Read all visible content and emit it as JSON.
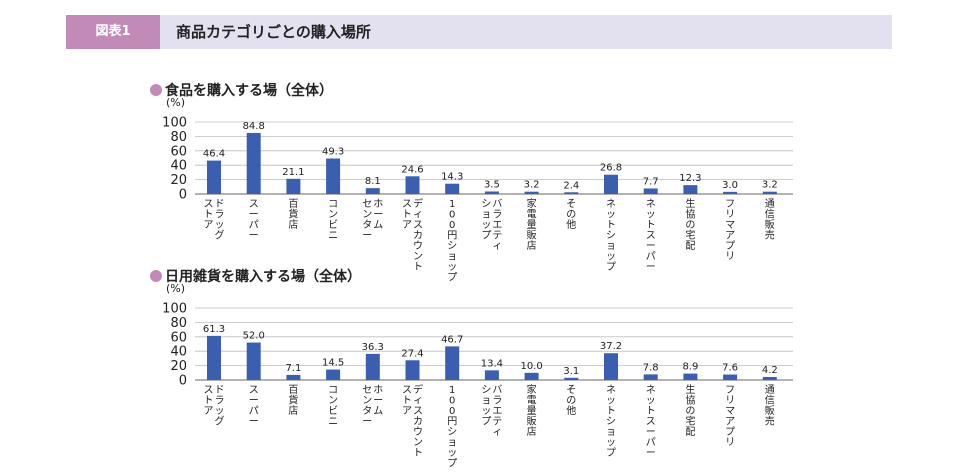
{
  "header": {
    "figure_label": "図表1",
    "title": "商品カテゴリごとの購入場所"
  },
  "colors": {
    "bar": "#3a5fb0",
    "accent": "#c28ab6",
    "header_bg": "#e3e0ef"
  },
  "chart_data": [
    {
      "type": "bar",
      "title": "食品を購入する場（全体）",
      "ylabel": "(%)",
      "ylim": [
        0,
        100
      ],
      "yticks": [
        0,
        20,
        40,
        60,
        80,
        100
      ],
      "grid": true,
      "categories": [
        "ドラッグストア",
        "スーパー",
        "百貨店",
        "コンビニ",
        "ホームセンター",
        "ディスカウントストア",
        "100円ショップ",
        "バラエティショップ",
        "家電量販店",
        "その他",
        "ネットショップ",
        "ネットスーパー",
        "生協の宅配",
        "フリマアプリ",
        "通信販売"
      ],
      "category_lines": [
        [
          "ドラッグ",
          "ストア"
        ],
        [
          "スーパー"
        ],
        [
          "百貨店"
        ],
        [
          "コンビニ"
        ],
        [
          "ホーム",
          "センター"
        ],
        [
          "ディスカウント",
          "ストア"
        ],
        [
          "100円ショップ"
        ],
        [
          "バラエティ",
          "ショップ"
        ],
        [
          "家電量販店"
        ],
        [
          "その他"
        ],
        [
          "ネットショップ"
        ],
        [
          "ネットスーパー"
        ],
        [
          "生協の宅配"
        ],
        [
          "フリマアプリ"
        ],
        [
          "通信販売"
        ]
      ],
      "values": [
        46.4,
        84.8,
        21.1,
        49.3,
        8.1,
        24.6,
        14.3,
        3.5,
        3.2,
        2.4,
        26.8,
        7.7,
        12.3,
        3.0,
        3.2
      ],
      "value_labels": [
        "46.4",
        "84.8",
        "21.1",
        "49.3",
        "8.1",
        "24.6",
        "14.3",
        "3.5",
        "3.2",
        "2.4",
        "26.8",
        "7.7",
        "12.3",
        "3.0",
        "3.2"
      ]
    },
    {
      "type": "bar",
      "title": "日用雑貨を購入する場（全体）",
      "ylabel": "(%)",
      "ylim": [
        0,
        100
      ],
      "yticks": [
        0,
        20,
        40,
        60,
        80,
        100
      ],
      "grid": true,
      "categories": [
        "ドラッグストア",
        "スーパー",
        "百貨店",
        "コンビニ",
        "ホームセンター",
        "ディスカウントストア",
        "100円ショップ",
        "バラエティショップ",
        "家電量販店",
        "その他",
        "ネットショップ",
        "ネットスーパー",
        "生協の宅配",
        "フリマアプリ",
        "通信販売"
      ],
      "category_lines": [
        [
          "ドラッグ",
          "ストア"
        ],
        [
          "スーパー"
        ],
        [
          "百貨店"
        ],
        [
          "コンビニ"
        ],
        [
          "ホーム",
          "センター"
        ],
        [
          "ディスカウント",
          "ストア"
        ],
        [
          "100円ショップ"
        ],
        [
          "バラエティ",
          "ショップ"
        ],
        [
          "家電量販店"
        ],
        [
          "その他"
        ],
        [
          "ネットショップ"
        ],
        [
          "ネットスーパー"
        ],
        [
          "生協の宅配"
        ],
        [
          "フリマアプリ"
        ],
        [
          "通信販売"
        ]
      ],
      "values": [
        61.3,
        52.0,
        7.1,
        14.5,
        36.3,
        27.4,
        46.7,
        13.4,
        10.0,
        3.1,
        37.2,
        7.8,
        8.9,
        7.6,
        4.2
      ],
      "value_labels": [
        "61.3",
        "52.0",
        "7.1",
        "14.5",
        "36.3",
        "27.4",
        "46.7",
        "13.4",
        "10.0",
        "3.1",
        "37.2",
        "7.8",
        "8.9",
        "7.6",
        "4.2"
      ]
    }
  ]
}
